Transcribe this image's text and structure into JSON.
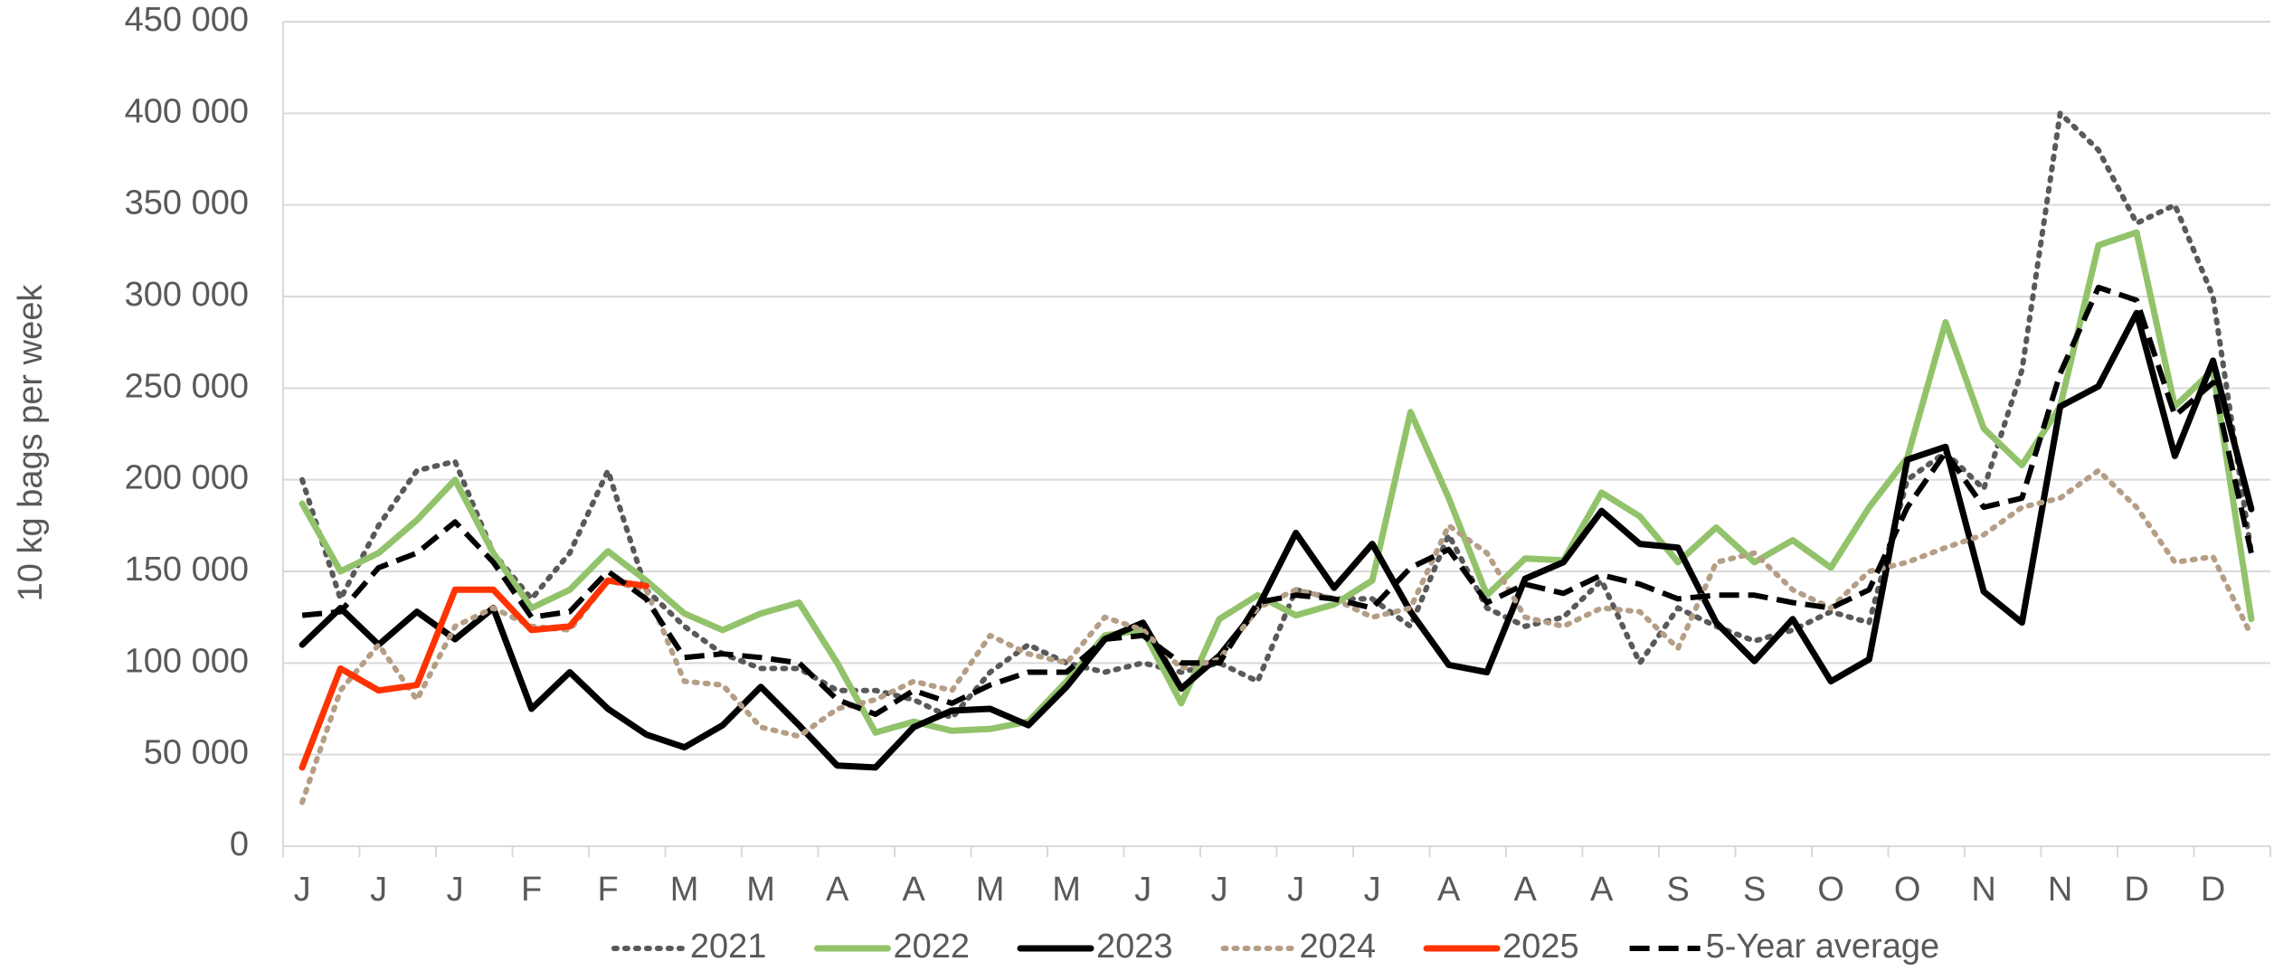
{
  "chart_data": {
    "type": "line",
    "y_label": "10 kg bags per week",
    "categories": [
      "J",
      null,
      "J",
      null,
      "J",
      null,
      "F",
      null,
      "F",
      null,
      "M",
      null,
      "M",
      null,
      "A",
      null,
      "A",
      null,
      "M",
      null,
      "M",
      null,
      "J",
      null,
      "J",
      null,
      "J",
      null,
      "J",
      null,
      "A",
      null,
      "A",
      null,
      "A",
      null,
      "S",
      null,
      "S",
      null,
      "O",
      null,
      "O",
      null,
      "N",
      null,
      "N",
      null,
      "D",
      null,
      "D",
      null
    ],
    "series": [
      {
        "name": "2021",
        "color": "#595959",
        "style": "dotted",
        "values": [
          200000,
          135000,
          175000,
          205000,
          210000,
          160000,
          135000,
          160000,
          205000,
          140000,
          120000,
          105000,
          97000,
          97000,
          85000,
          85000,
          80000,
          70000,
          95000,
          110000,
          100000,
          95000,
          100000,
          95000,
          100000,
          90000,
          140000,
          135000,
          135000,
          120000,
          170000,
          130000,
          120000,
          125000,
          145000,
          100000,
          130000,
          120000,
          112000,
          118000,
          128000,
          122000,
          200000,
          215000,
          195000,
          260000,
          400000,
          380000,
          340000,
          350000,
          300000,
          160000
        ]
      },
      {
        "name": "2022",
        "color": "#92c36b",
        "style": "solid",
        "values": [
          187000,
          150000,
          160000,
          178000,
          200000,
          160000,
          130000,
          140000,
          161000,
          145000,
          127000,
          118000,
          127000,
          133000,
          100000,
          62000,
          68000,
          63000,
          64000,
          68000,
          90000,
          115000,
          118000,
          78000,
          124000,
          137000,
          126000,
          132000,
          145000,
          237000,
          190000,
          137000,
          157000,
          156000,
          193000,
          180000,
          155000,
          174000,
          155000,
          167000,
          152000,
          185000,
          212000,
          286000,
          228000,
          208000,
          240000,
          328000,
          335000,
          240000,
          260000,
          124000
        ]
      },
      {
        "name": "2023",
        "color": "#000000",
        "style": "solid",
        "values": [
          110000,
          130000,
          110000,
          128000,
          113000,
          130000,
          75000,
          95000,
          75000,
          61000,
          54000,
          66000,
          87000,
          66000,
          44000,
          43000,
          65000,
          74000,
          75000,
          66000,
          87000,
          113000,
          122000,
          86000,
          104000,
          130000,
          171000,
          141000,
          165000,
          128000,
          99000,
          95000,
          146000,
          155000,
          183000,
          165000,
          163000,
          122000,
          101000,
          124000,
          90000,
          102000,
          211000,
          218000,
          139000,
          122000,
          240000,
          251000,
          291000,
          213000,
          265000,
          184000
        ]
      },
      {
        "name": "2024",
        "color": "#b59e86",
        "style": "dotted",
        "values": [
          24000,
          85000,
          110000,
          80000,
          120000,
          130000,
          120000,
          118000,
          145000,
          140000,
          90000,
          88000,
          65000,
          60000,
          75000,
          80000,
          90000,
          85000,
          115000,
          105000,
          100000,
          125000,
          118000,
          97000,
          102000,
          130000,
          140000,
          135000,
          125000,
          130000,
          175000,
          160000,
          125000,
          120000,
          130000,
          128000,
          108000,
          155000,
          160000,
          140000,
          130000,
          150000,
          155000,
          163000,
          170000,
          185000,
          190000,
          205000,
          185000,
          155000,
          158000,
          115000
        ]
      },
      {
        "name": "2025",
        "color": "#ff3300",
        "style": "solid",
        "values": [
          43000,
          97000,
          85000,
          88000,
          140000,
          140000,
          118000,
          120000,
          145000,
          142000,
          null,
          null,
          null,
          null,
          null,
          null,
          null,
          null,
          null,
          null,
          null,
          null,
          null,
          null,
          null,
          null,
          null,
          null,
          null,
          null,
          null,
          null,
          null,
          null,
          null,
          null,
          null,
          null,
          null,
          null,
          null,
          null,
          null,
          null,
          null,
          null,
          null,
          null,
          null,
          null,
          null,
          null
        ]
      },
      {
        "name": "5-Year average",
        "color": "#000000",
        "style": "dashed",
        "values": [
          126000,
          128000,
          152000,
          160000,
          177000,
          155000,
          125000,
          128000,
          150000,
          135000,
          103000,
          105000,
          103000,
          100000,
          80000,
          72000,
          85000,
          78000,
          88000,
          95000,
          95000,
          113000,
          115000,
          100000,
          100000,
          133000,
          137000,
          135000,
          130000,
          152000,
          162000,
          133000,
          143000,
          138000,
          148000,
          143000,
          135000,
          137000,
          137000,
          133000,
          130000,
          140000,
          185000,
          215000,
          185000,
          190000,
          258000,
          305000,
          298000,
          235000,
          253000,
          160000
        ]
      }
    ],
    "ylim": [
      0,
      450000
    ],
    "yticks": [
      {
        "value": 0,
        "label": "0"
      },
      {
        "value": 50000,
        "label": "50 000"
      },
      {
        "value": 100000,
        "label": "100 000"
      },
      {
        "value": 150000,
        "label": "150 000"
      },
      {
        "value": 200000,
        "label": "200 000"
      },
      {
        "value": 250000,
        "label": "250 000"
      },
      {
        "value": 300000,
        "label": "300 000"
      },
      {
        "value": 350000,
        "label": "350 000"
      },
      {
        "value": 400000,
        "label": "400 000"
      },
      {
        "value": 450000,
        "label": "450 000"
      }
    ],
    "grid": true,
    "legend": "bottom"
  }
}
